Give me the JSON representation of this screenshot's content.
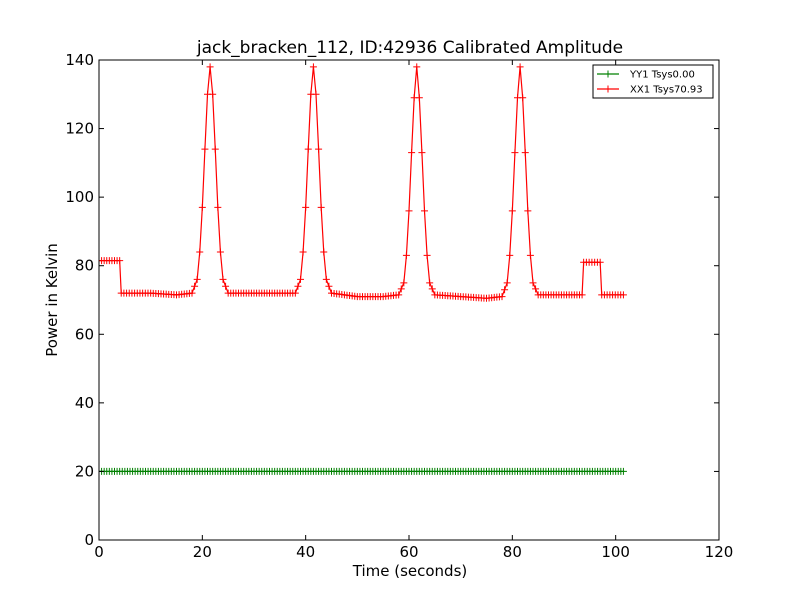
{
  "chart_data": {
    "type": "line",
    "title": "jack_bracken_112, ID:42936 Calibrated Amplitude",
    "xlabel": "Time (seconds)",
    "ylabel": "Power in Kelvin",
    "xlim": [
      0,
      120
    ],
    "ylim": [
      0,
      140
    ],
    "xticks": [
      "0",
      "20",
      "40",
      "60",
      "80",
      "100",
      "120"
    ],
    "yticks": [
      "0",
      "20",
      "40",
      "60",
      "80",
      "100",
      "120",
      "140"
    ],
    "grid": false,
    "legend_position": "top-right",
    "series": [
      {
        "name": "YY1 Tsys0.00",
        "color": "#008000",
        "marker": "plus",
        "x": [
          0,
          101.5
        ],
        "y": [
          20,
          20
        ]
      },
      {
        "name": "XX1 Tsys70.93",
        "color": "#ff0000",
        "marker": "plus",
        "x": [
          0,
          4,
          4.3,
          10,
          15,
          18,
          19,
          19.5,
          20,
          20.5,
          21,
          21.5,
          22,
          22.5,
          23,
          23.5,
          24,
          25,
          30,
          35,
          38,
          39,
          39.5,
          40,
          40.5,
          41,
          41.5,
          42,
          42.5,
          43,
          43.5,
          44,
          45,
          50,
          55,
          58,
          59,
          59.5,
          60,
          60.5,
          61,
          61.5,
          62,
          62.5,
          63,
          63.5,
          64,
          65,
          70,
          75,
          78,
          79,
          79.5,
          80,
          80.5,
          81,
          81.5,
          82,
          82.5,
          83,
          83.5,
          84,
          85,
          90,
          93.5,
          93.8,
          97,
          97.3,
          101.5
        ],
        "y": [
          81.5,
          81.5,
          72,
          72,
          71.5,
          72,
          76,
          84,
          97,
          114,
          130,
          138,
          130,
          114,
          97,
          84,
          76,
          72,
          72,
          72,
          72,
          76,
          84,
          97,
          114,
          130,
          138,
          130,
          114,
          97,
          84,
          76,
          72,
          71,
          71,
          71.5,
          75,
          83,
          96,
          113,
          129,
          138,
          129,
          113,
          96,
          83,
          75,
          71.5,
          71,
          70.5,
          71,
          75,
          83,
          96,
          113,
          129,
          138,
          129,
          113,
          96,
          83,
          75,
          71.5,
          71.5,
          71.5,
          81,
          81,
          71.5,
          71.5
        ]
      }
    ]
  }
}
